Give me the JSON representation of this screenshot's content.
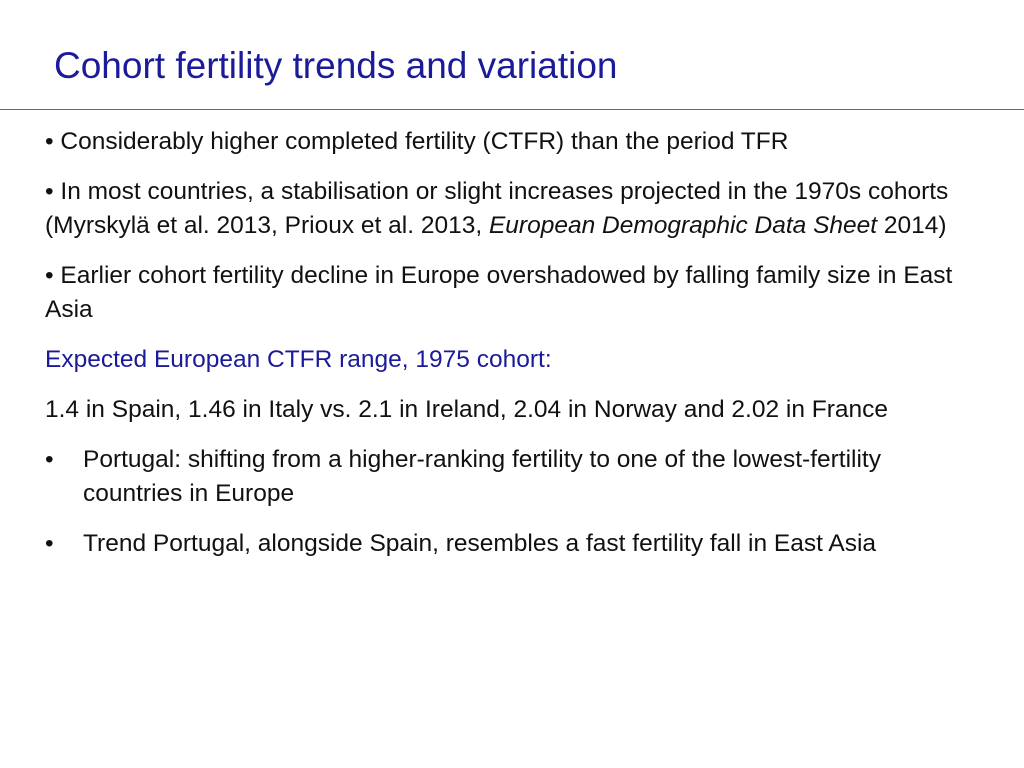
{
  "slide": {
    "title": "Cohort fertility trends and variation",
    "bullet_glyph": "•",
    "bullets": [
      {
        "text": "Considerably higher completed fertility (CTFR) than the period TFR"
      },
      {
        "text_before": "In most countries, a stabilisation or slight increases projected in the 1970s cohorts (Myrskylä et al. 2013, Prioux et al. 2013, ",
        "italic": "European Demographic Data Sheet",
        "text_after": " 2014)"
      },
      {
        "text": "Earlier cohort fertility decline in Europe overshadowed by falling family size in East Asia"
      }
    ],
    "subheading": "Expected European CTFR range, 1975 cohort:",
    "range_text": "1.4 in Spain, 1.46 in Italy vs. 2.1 in Ireland, 2.04 in Norway and 2.02 in France",
    "sub_bullets": [
      {
        "text": "Portugal: shifting from a higher-ranking fertility to one of the lowest-fertility countries in Europe"
      },
      {
        "text": "Trend Portugal, alongside Spain, resembles a fast fertility fall in East Asia"
      }
    ]
  },
  "colors": {
    "title": "#1a1a9a",
    "subheading": "#1a1a9a",
    "body_text": "#111111",
    "divider": "#6a6a6a",
    "background": "#ffffff"
  }
}
